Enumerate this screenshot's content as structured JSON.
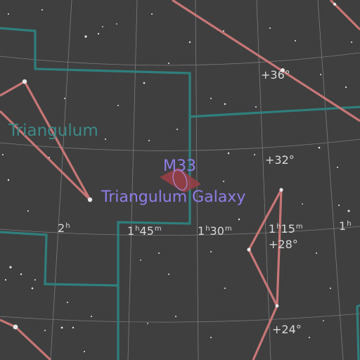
{
  "map": {
    "constellation_label": "Triangulum",
    "object": {
      "catalog_label": "M33",
      "name_label": "Triangulum Galaxy"
    },
    "dec_labels": [
      "+36°",
      "+32°",
      "+28°",
      "+24°"
    ],
    "ra_labels": [
      {
        "hours": "2",
        "hours_unit": "h"
      },
      {
        "hours": "1",
        "hours_unit": "h",
        "minutes": "45",
        "minutes_unit": "m"
      },
      {
        "hours": "1",
        "hours_unit": "h",
        "minutes": "30",
        "minutes_unit": "m"
      },
      {
        "hours": "1",
        "hours_unit": "h",
        "minutes": "15",
        "minutes_unit": "m"
      },
      {
        "hours": "1",
        "hours_unit": "h"
      }
    ],
    "colors": {
      "background": "#3f3f3f",
      "grid": "#8a8a8a",
      "constellation_boundary": "#2f7f7d",
      "constellation_line": "#c77676",
      "object_label": "#8f7de8",
      "galaxy_marker": "#9b3f47"
    }
  }
}
